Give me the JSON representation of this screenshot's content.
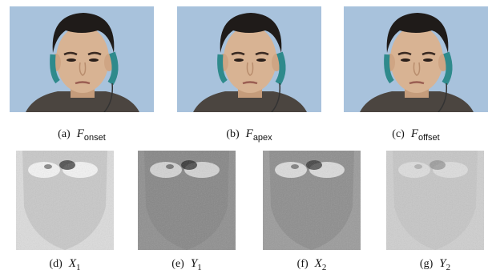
{
  "top_row": [
    {
      "label": "(a)",
      "symbol": "F",
      "subscript": "onset"
    },
    {
      "label": "(b)",
      "symbol": "F",
      "subscript": "apex"
    },
    {
      "label": "(c)",
      "symbol": "F",
      "subscript": "offset"
    }
  ],
  "bottom_row": [
    {
      "label": "(d)",
      "symbol": "X",
      "subscript": "1"
    },
    {
      "label": "(e)",
      "symbol": "Y",
      "subscript": "1"
    },
    {
      "label": "(f)",
      "symbol": "X",
      "subscript": "2"
    },
    {
      "label": "(g)",
      "symbol": "Y",
      "subscript": "2"
    }
  ]
}
